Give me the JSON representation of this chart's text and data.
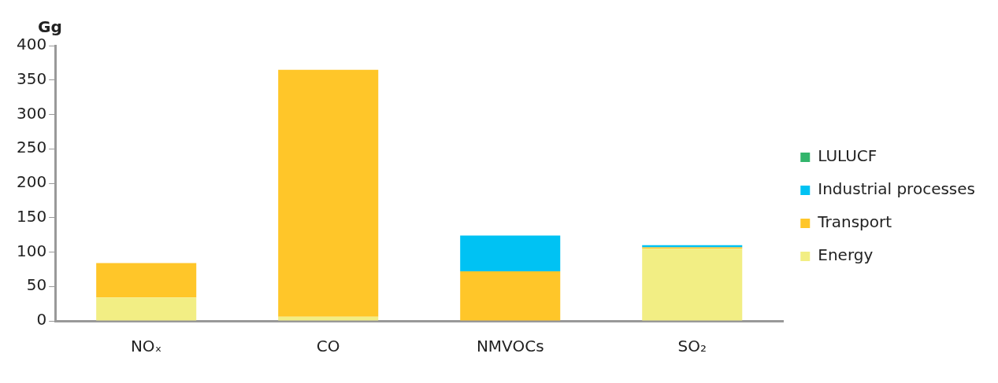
{
  "chart_data": {
    "type": "bar",
    "ylabel": "Gg",
    "categories": [
      "NOₓ",
      "CO",
      "NMVOCs",
      "SO₂"
    ],
    "stacked": true,
    "ylim": [
      0,
      400
    ],
    "yticks": [
      0,
      50,
      100,
      150,
      200,
      250,
      300,
      350,
      400
    ],
    "grid": false,
    "legend": "right",
    "series": [
      {
        "name": "Energy",
        "color": "#f2ee84",
        "values": [
          34,
          6,
          null,
          105
        ]
      },
      {
        "name": "Transport",
        "color": "#ffc629",
        "values": [
          50,
          359,
          72,
          2
        ]
      },
      {
        "name": "Industrial processes",
        "color": "#00c2f3",
        "values": [
          null,
          null,
          52,
          3
        ]
      },
      {
        "name": "LULUCF",
        "color": "#33b56c",
        "values": [
          null,
          null,
          null,
          null
        ]
      }
    ]
  }
}
